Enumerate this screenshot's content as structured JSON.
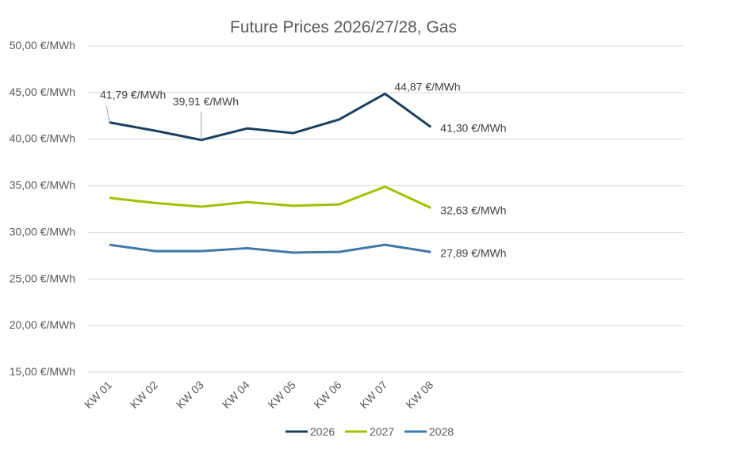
{
  "chart_data": {
    "type": "line",
    "title": "Future Prices 2026/27/28, Gas",
    "xlabel": "",
    "ylabel": "",
    "categories": [
      "KW 01",
      "KW 02",
      "KW 03",
      "KW 04",
      "KW 05",
      "KW 06",
      "KW 07",
      "KW 08"
    ],
    "ylim": [
      15,
      50
    ],
    "yticks": [
      "15,00 €/MWh",
      "20,00 €/MWh",
      "25,00 €/MWh",
      "30,00 €/MWh",
      "35,00 €/MWh",
      "40,00 €/MWh",
      "45,00 €/MWh",
      "50,00 €/MWh"
    ],
    "grid": true,
    "legend_position": "bottom",
    "series": [
      {
        "name": "2026",
        "color": "#1b3f5e",
        "values": [
          41.79,
          40.9,
          39.91,
          41.15,
          40.65,
          42.1,
          44.87,
          41.3
        ]
      },
      {
        "name": "2027",
        "color": "#9dc300",
        "values": [
          33.7,
          33.15,
          32.75,
          33.25,
          32.85,
          33.0,
          34.9,
          32.63
        ]
      },
      {
        "name": "2028",
        "color": "#3f79a8",
        "values": [
          28.67,
          27.99,
          27.99,
          28.3,
          27.83,
          27.9,
          28.67,
          27.89
        ]
      }
    ],
    "annotations": [
      {
        "series": 0,
        "index": 0,
        "text": "41,79 €/MWh"
      },
      {
        "series": 0,
        "index": 2,
        "text": "39,91 €/MWh"
      },
      {
        "series": 0,
        "index": 6,
        "text": "44,87 €/MWh"
      },
      {
        "series": 0,
        "index": 7,
        "text": "41,30 €/MWh"
      },
      {
        "series": 1,
        "index": 7,
        "text": "32,63 €/MWh"
      },
      {
        "series": 2,
        "index": 7,
        "text": "27,89 €/MWh"
      }
    ]
  }
}
